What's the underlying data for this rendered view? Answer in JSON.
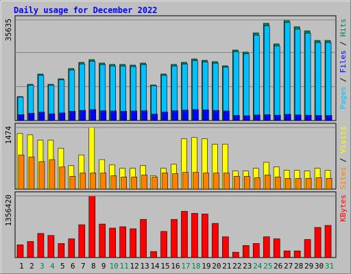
{
  "title": "Daily usage for December 2022",
  "chart_data": [
    {
      "type": "bar",
      "series": [
        {
          "name": "Hits",
          "color": "#00805c",
          "values": [
            8484,
            12847,
            16483,
            12847,
            14786,
            18422,
            20604,
            21573,
            20362,
            19877,
            19877,
            19634,
            20362,
            12605,
            16483,
            19877,
            20604,
            21816,
            21331,
            20846,
            19392,
            24967,
            24240,
            31027,
            34421,
            27149,
            35635,
            33209,
            31754,
            28361,
            28361
          ]
        },
        {
          "name": "Files",
          "color": "#0000ff",
          "values": [
            2100,
            2600,
            3000,
            2400,
            2700,
            3300,
            3600,
            3900,
            3500,
            3400,
            3300,
            3400,
            3500,
            2300,
            3000,
            3500,
            3700,
            3900,
            3800,
            3600,
            3400,
            1800,
            1700,
            2000,
            2100,
            1900,
            2200,
            2000,
            1900,
            1800,
            1800
          ]
        },
        {
          "name": "Pages",
          "color": "#00c0ff",
          "values": [
            8300,
            12500,
            16000,
            12500,
            14400,
            17900,
            20000,
            21000,
            19800,
            19300,
            19300,
            19100,
            19800,
            12300,
            16000,
            19300,
            20000,
            21200,
            20700,
            20300,
            18900,
            24300,
            23600,
            30200,
            33500,
            26400,
            34700,
            32300,
            30900,
            27600,
            27600
          ]
        }
      ],
      "ylim": [
        0,
        35635
      ],
      "yticks": [
        35635
      ]
    },
    {
      "type": "bar",
      "series": [
        {
          "name": "Visits",
          "color": "#ffff00",
          "values": [
            1328,
            1296,
            1168,
            1168,
            976,
            560,
            816,
            1474,
            704,
            576,
            496,
            496,
            560,
            320,
            496,
            592,
            1200,
            1232,
            1200,
            1072,
            1072,
            432,
            432,
            496,
            640,
            528,
            448,
            448,
            432,
            496,
            448
          ]
        },
        {
          "name": "Sites",
          "color": "#ff8000",
          "values": [
            816,
            768,
            656,
            704,
            528,
            304,
            384,
            384,
            384,
            320,
            288,
            288,
            336,
            288,
            384,
            368,
            400,
            400,
            384,
            384,
            384,
            304,
            304,
            272,
            336,
            288,
            256,
            256,
            256,
            272,
            256
          ]
        }
      ],
      "ylim": [
        0,
        1474
      ],
      "yticks": [
        1474
      ]
    },
    {
      "type": "bar",
      "series": [
        {
          "name": "KBytes",
          "color": "#ff0000",
          "values": [
            280136,
            353856,
            530784,
            486552,
            309624,
            412832,
            722456,
            1356420,
            737200,
            648736,
            678224,
            633992,
            840408,
            132696,
            575016,
            840408,
            1017336,
            973104,
            958360,
            751944,
            457064,
            117952,
            265392,
            309624,
            457064,
            412832,
            147440,
            147440,
            398088,
            663480,
            707712
          ]
        }
      ],
      "ylim": [
        0,
        1356420
      ],
      "yticks": [
        1356420
      ],
      "categories": [
        "1",
        "2",
        "3",
        "4",
        "5",
        "6",
        "7",
        "8",
        "9",
        "10",
        "11",
        "12",
        "13",
        "14",
        "15",
        "16",
        "17",
        "18",
        "19",
        "20",
        "21",
        "22",
        "23",
        "24",
        "25",
        "26",
        "27",
        "28",
        "29",
        "30",
        "31"
      ],
      "category_colors": [
        "#000000",
        "#000000",
        "#00805c",
        "#00805c",
        "#000000",
        "#000000",
        "#000000",
        "#000000",
        "#000000",
        "#00805c",
        "#00805c",
        "#000000",
        "#000000",
        "#000000",
        "#000000",
        "#000000",
        "#00805c",
        "#00805c",
        "#000000",
        "#000000",
        "#000000",
        "#000000",
        "#000000",
        "#00805c",
        "#00805c",
        "#000000",
        "#000000",
        "#000000",
        "#000000",
        "#000000",
        "#00805c"
      ]
    }
  ]
}
